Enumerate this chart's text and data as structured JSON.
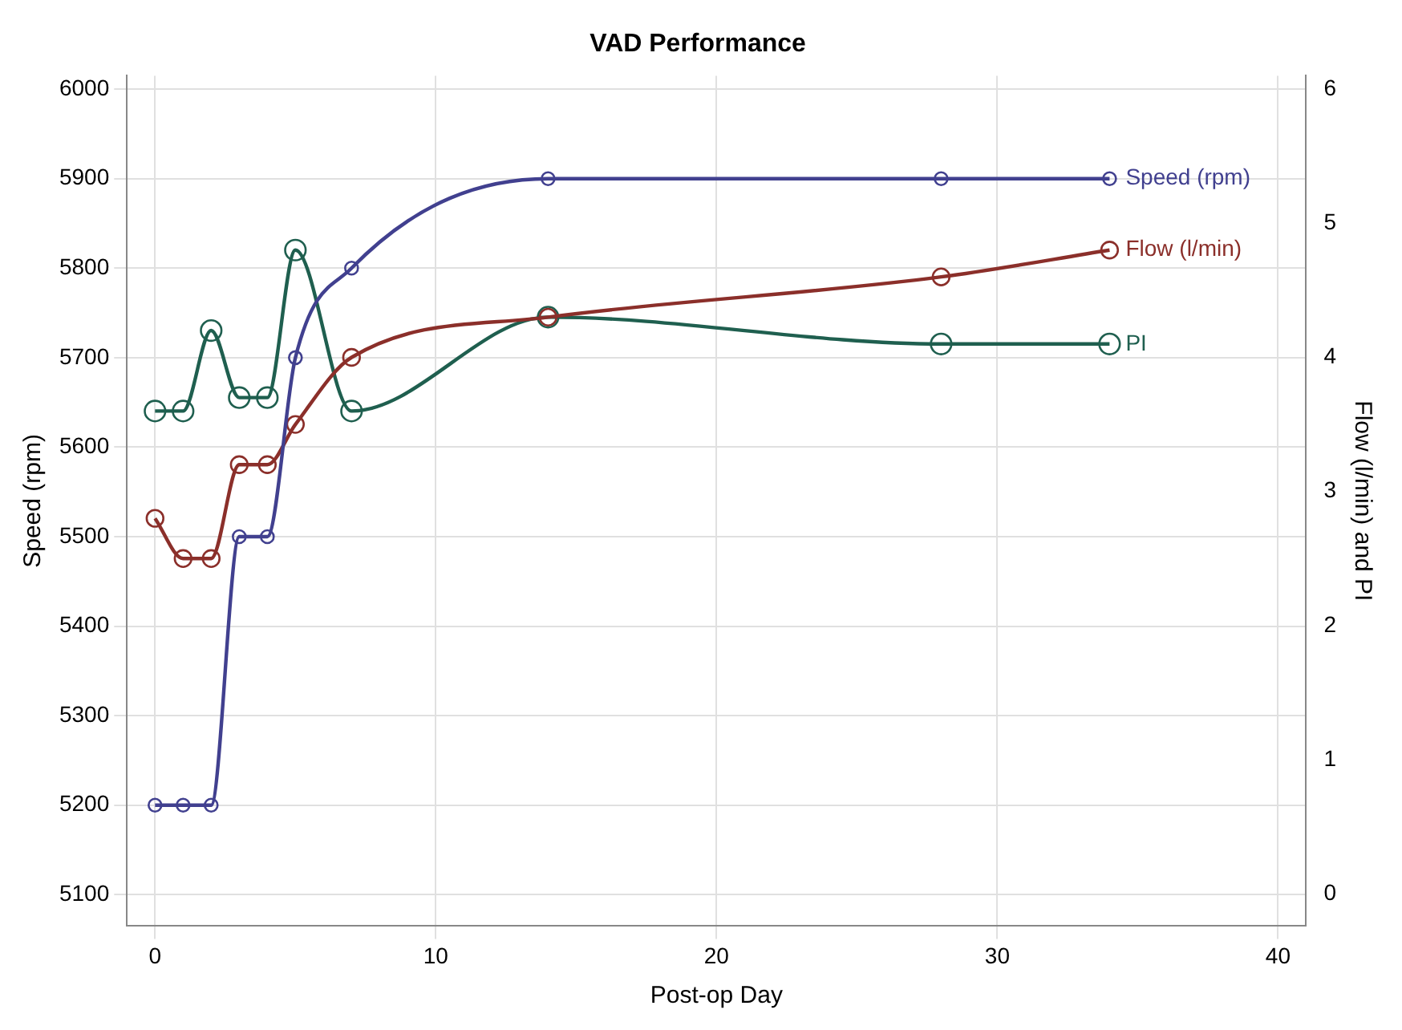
{
  "chart_data": {
    "type": "line",
    "title": "VAD Performance",
    "xlabel": "Post-op Day",
    "ylabel": "Speed (rpm)",
    "y2label": "Flow (l/min) and PI",
    "x": [
      0,
      1,
      2,
      3,
      4,
      5,
      7,
      14,
      28,
      34
    ],
    "series": [
      {
        "name": "Speed (rpm)",
        "color": "#41408f",
        "values": [
          5200,
          5200,
          5200,
          5500,
          5500,
          5700,
          5800,
          5900,
          5900,
          5900
        ]
      },
      {
        "name": "Flow (l/min)",
        "color": "#8b2f2a",
        "axis": "y2",
        "values": [
          2.8,
          2.5,
          2.5,
          3.2,
          3.2,
          3.5,
          4.0,
          4.3,
          4.6,
          4.8
        ]
      },
      {
        "name": "PI",
        "color": "#1f5f4f",
        "axis": "y2",
        "values": [
          3.6,
          3.6,
          4.2,
          3.7,
          3.7,
          4.8,
          3.6,
          4.3,
          4.1,
          4.1
        ]
      }
    ],
    "xlim": [
      -1,
      41
    ],
    "xticks": [
      0,
      10,
      20,
      30,
      40
    ],
    "ylim": [
      5065,
      6015
    ],
    "yticks": [
      5100,
      5200,
      5300,
      5400,
      5500,
      5600,
      5700,
      5800,
      5900,
      6000
    ],
    "y2lim": [
      -0.24,
      6.1
    ],
    "y2ticks": [
      0,
      1,
      2,
      3,
      4,
      5,
      6
    ],
    "grid": true,
    "legend": false,
    "marker": "circle",
    "line_style": "solid"
  }
}
